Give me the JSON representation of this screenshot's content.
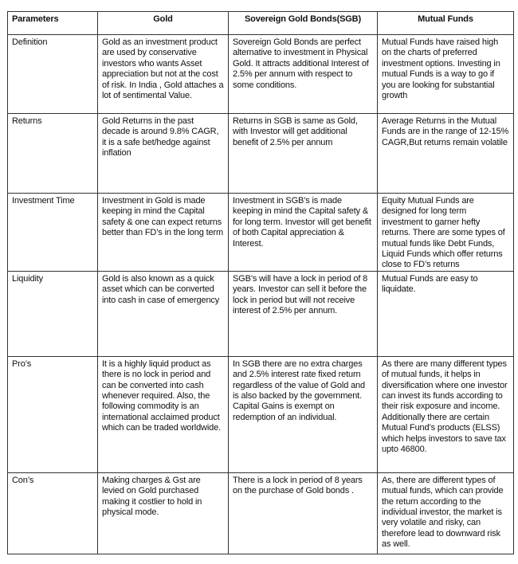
{
  "table": {
    "headers": [
      "Parameters",
      "Gold",
      "Sovereign Gold Bonds(SGB)",
      "Mutual Funds"
    ],
    "rows": [
      {
        "parameter": "Definition",
        "gold": "Gold as an investment product are used by conservative investors who wants Asset appreciation but not at the cost of risk.  In India , Gold attaches a lot of sentimental Value.",
        "sgb": "Sovereign Gold Bonds are perfect alternative to investment in Physical Gold. It attracts additional Interest of 2.5% per annum with respect to some conditions.",
        "mf": "Mutual Funds have raised high on the charts of preferred investment options. Investing in mutual Funds is a way to go if you are looking for substantial growth"
      },
      {
        "parameter": "Returns",
        "gold": "Gold Returns in the past decade is around 9.8% CAGR, it is a safe bet/hedge against inflation",
        "sgb": "Returns in SGB is same as Gold, with Investor will get additional benefit of 2.5% per annum",
        "mf": "Average Returns in the Mutual Funds are in the range of 12-15% CAGR,But returns remain volatile"
      },
      {
        "parameter": "Investment Time",
        "gold": "Investment in Gold is made keeping in mind the Capital safety & one can expect returns better than FD’s in the long term",
        "sgb": "Investment in SGB’s is made keeping in mind the Capital safety & for long term. Investor will get benefit of both Capital appreciation & Interest.",
        "mf": "Equity Mutual Funds are designed for long term investment to garner hefty returns. There are some  types of mutual funds like Debt Funds, Liquid Funds which offer returns close to FD’s returns"
      },
      {
        "parameter": "Liquidity",
        "gold": "Gold is also known as a quick asset which can be converted into cash in case of emergency",
        "sgb": "SGB’s will have a lock in period of 8 years. Investor can sell it before the lock in period but will not receive interest of 2.5% per annum.",
        "mf": "Mutual Funds are easy to liquidate."
      },
      {
        "parameter": "Pro’s",
        "gold": "It is a highly liquid product as there is no lock in period and can be converted into cash whenever required. Also, the following commodity is an international acclaimed product which can be traded worldwide.",
        "sgb": "In SGB there are no extra charges and 2.5% interest rate fixed return regardless of the value of Gold and is also backed by the government. Capital Gains is exempt on redemption of an individual.",
        "mf": "As there are many different types of mutual funds, it helps in diversification where one investor can invest its funds according to their risk exposure and income. Additionally there are certain Mutual Fund’s products  (ELSS) which helps investors to save tax upto 46800."
      },
      {
        "parameter": "Con’s",
        "gold": "Making charges & Gst are levied on Gold purchased making it costlier to hold in physical mode.",
        "sgb": "There is a lock in period of 8 years on the purchase of Gold bonds .",
        "mf": "As, there are different types of mutual funds, which can provide the return according to the individual investor, the market is very volatile and risky, can therefore lead to downward risk as well."
      }
    ]
  }
}
